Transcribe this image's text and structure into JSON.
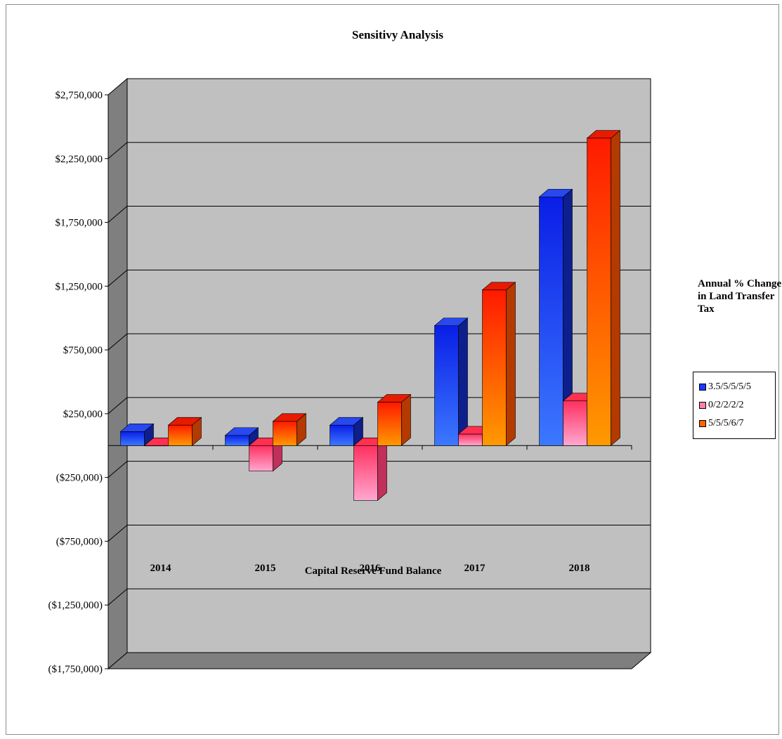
{
  "chart_data": {
    "type": "bar",
    "title": "Sensitivy Analysis",
    "xlabel": "Capital Reserve Fund Balance",
    "ylabel": "",
    "categories": [
      "2014",
      "2015",
      "2016",
      "2017",
      "2018"
    ],
    "ytick_labels": [
      "$2,750,000",
      "$2,250,000",
      "$1,750,000",
      "$1,250,000",
      "$750,000",
      "$250,000",
      "($250,000)",
      "($750,000)",
      "($1,250,000)",
      "($1,750,000)"
    ],
    "ylim": [
      -1750000,
      2750000
    ],
    "grid": true,
    "legend_title": "Annual % Change in Land Transfer Tax",
    "legend_position": "right",
    "series": [
      {
        "name": "3.5/5/5/5/5",
        "color": "#1a3cff",
        "values": [
          110000,
          80000,
          160000,
          940000,
          1950000
        ]
      },
      {
        "name": "0/2/2/2/2",
        "color": "#ff80b0",
        "values": [
          0,
          -200000,
          -430000,
          90000,
          350000
        ]
      },
      {
        "name": "5/5/5/6/7",
        "color": "#ff6600",
        "values": [
          160000,
          190000,
          340000,
          1220000,
          2410000
        ]
      }
    ]
  }
}
